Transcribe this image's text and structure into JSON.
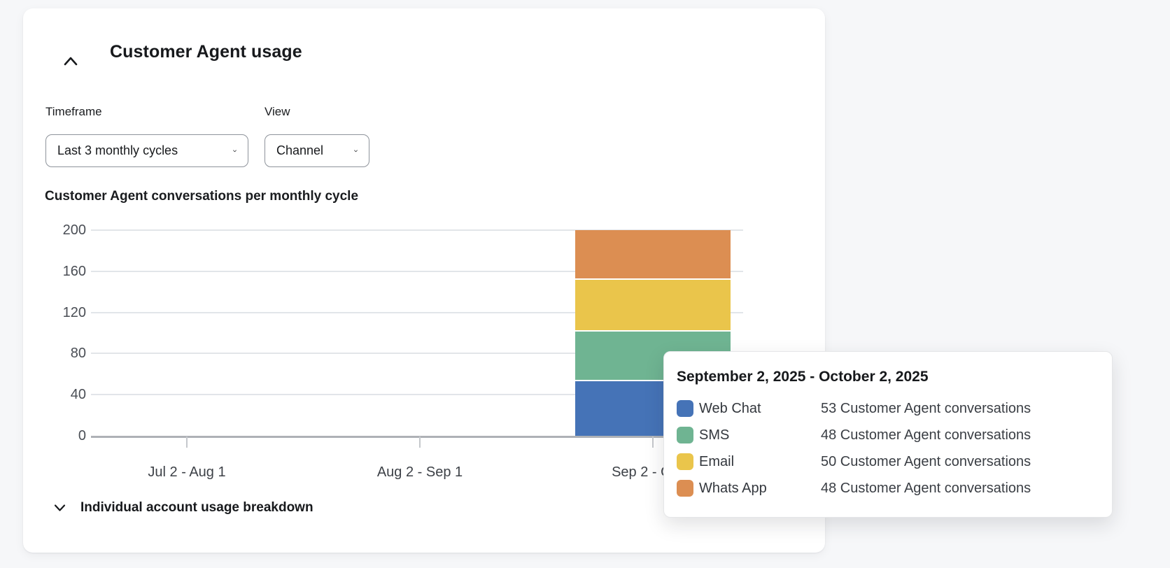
{
  "page": {
    "background_color": "#F6F7F9"
  },
  "card": {
    "title": "Customer Agent usage",
    "collapse_icon": "chevron-up-icon",
    "filters": {
      "timeframe": {
        "label": "Timeframe",
        "value": "Last 3 monthly cycles"
      },
      "view": {
        "label": "View",
        "value": "Channel"
      }
    },
    "breakdown": {
      "label": "Individual account usage breakdown",
      "icon": "chevron-down-icon"
    }
  },
  "chart_data": {
    "type": "bar",
    "stacked": true,
    "title": "Customer Agent conversations per monthly cycle",
    "categories": [
      "Jul 2 - Aug 1",
      "Aug 2 - Sep 1",
      "Sep 2 - Oct 2"
    ],
    "series": [
      {
        "name": "Web Chat",
        "color": "#4573B7",
        "values": [
          0,
          0,
          53
        ]
      },
      {
        "name": "SMS",
        "color": "#6FB492",
        "values": [
          0,
          0,
          48
        ]
      },
      {
        "name": "Email",
        "color": "#EAC54B",
        "values": [
          0,
          0,
          50
        ]
      },
      {
        "name": "Whats App",
        "color": "#DC8E52",
        "values": [
          0,
          0,
          48
        ]
      }
    ],
    "xlabel": "",
    "ylabel": "",
    "ylim": [
      0,
      200
    ],
    "yticks": [
      0,
      40,
      80,
      120,
      160,
      200
    ],
    "grid": true,
    "legend_position": "tooltip-only",
    "colors": {
      "gridline": "#E2E5E9",
      "axis": "#AEB1B6",
      "tick_text": "#4A4E55"
    }
  },
  "tooltip": {
    "title": "September 2, 2025 - October 2, 2025",
    "rows": [
      {
        "channel": "Web Chat",
        "color": "#4573B7",
        "value": "53 Customer Agent conversations"
      },
      {
        "channel": "SMS",
        "color": "#6FB492",
        "value": "48 Customer Agent conversations"
      },
      {
        "channel": "Email",
        "color": "#EAC54B",
        "value": "50 Customer Agent conversations"
      },
      {
        "channel": "Whats App",
        "color": "#DC8E52",
        "value": "48 Customer Agent conversations"
      }
    ]
  }
}
